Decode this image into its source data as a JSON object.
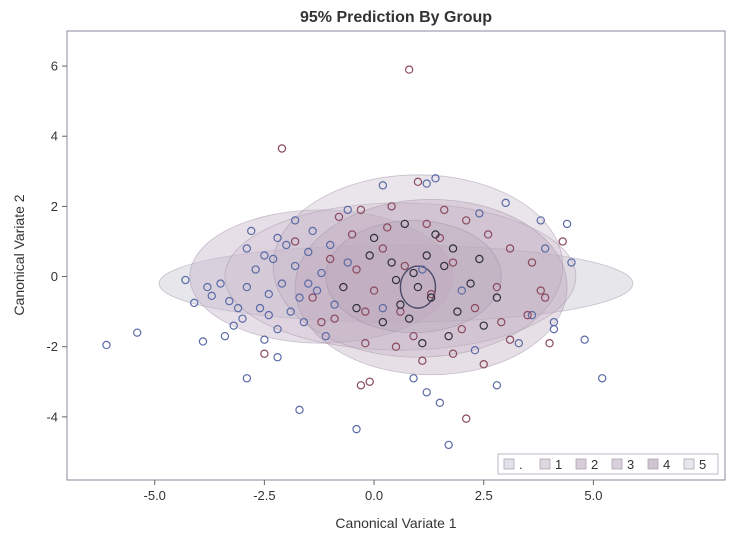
{
  "chart_data": {
    "type": "scatter",
    "title": "95% Prediction By Group",
    "xlabel": "Canonical Variate 1",
    "ylabel": "Canonical Variate 2",
    "xlim": [
      -7.0,
      8.0
    ],
    "ylim": [
      -5.8,
      7.0
    ],
    "x_ticks": [
      {
        "value": -5.0,
        "label": "-5.0"
      },
      {
        "value": -2.5,
        "label": "-2.5"
      },
      {
        "value": 0.0,
        "label": "0.0"
      },
      {
        "value": 2.5,
        "label": "2.5"
      },
      {
        "value": 5.0,
        "label": "5.0"
      }
    ],
    "y_ticks": [
      {
        "value": -4,
        "label": "-4"
      },
      {
        "value": -2,
        "label": "-2"
      },
      {
        "value": 0,
        "label": "0"
      },
      {
        "value": 2,
        "label": "2"
      },
      {
        "value": 4,
        "label": "4"
      },
      {
        "value": 6,
        "label": "6"
      }
    ],
    "grid": false,
    "legend": {
      "position": "bottom-right",
      "entries": [
        {
          "label": "."
        },
        {
          "label": "1"
        },
        {
          "label": "2"
        },
        {
          "label": "3"
        },
        {
          "label": "4"
        },
        {
          "label": "5"
        }
      ]
    },
    "ellipses": [
      {
        "cx": 0.5,
        "cy": -0.2,
        "rx": 5.4,
        "ry": 1.1,
        "fill": "#d8d8e0",
        "opacity": 0.65
      },
      {
        "cx": -1.2,
        "cy": 0.0,
        "rx": 3.0,
        "ry": 1.9,
        "fill": "#c7b9cc",
        "opacity": 0.45
      },
      {
        "cx": 0.6,
        "cy": 0.0,
        "rx": 4.0,
        "ry": 2.1,
        "fill": "#cdbecd",
        "opacity": 0.35
      },
      {
        "cx": 1.0,
        "cy": 0.3,
        "rx": 3.3,
        "ry": 2.6,
        "fill": "#c4b4c6",
        "opacity": 0.35
      },
      {
        "cx": 1.3,
        "cy": -0.3,
        "rx": 3.1,
        "ry": 2.5,
        "fill": "#b9a4b8",
        "opacity": 0.35
      },
      {
        "cx": 0.9,
        "cy": 0.0,
        "rx": 2.0,
        "ry": 1.6,
        "fill": "#b6a2b6",
        "opacity": 0.3
      },
      {
        "cx": 1.0,
        "cy": -0.3,
        "rx": 0.4,
        "ry": 0.6,
        "fill": "none",
        "opacity": 1.0
      }
    ],
    "series": [
      {
        "color": "#5b6aa6",
        "points": [
          [
            -6.1,
            -1.95
          ],
          [
            -5.4,
            -1.6
          ],
          [
            -4.3,
            -0.1
          ],
          [
            -4.1,
            -0.75
          ],
          [
            -3.9,
            -1.85
          ],
          [
            -3.8,
            -0.3
          ],
          [
            -3.7,
            -0.55
          ],
          [
            -3.5,
            -0.2
          ],
          [
            -3.3,
            -0.7
          ],
          [
            -3.2,
            -1.4
          ],
          [
            -3.1,
            -0.9
          ],
          [
            -3.0,
            -1.2
          ],
          [
            -2.9,
            0.8
          ],
          [
            -2.9,
            -0.3
          ],
          [
            -2.8,
            1.3
          ],
          [
            -2.7,
            0.2
          ],
          [
            -2.6,
            -0.9
          ],
          [
            -2.5,
            -1.8
          ],
          [
            -2.4,
            -0.5
          ],
          [
            -2.3,
            0.5
          ],
          [
            -2.2,
            1.1
          ],
          [
            -2.2,
            -1.5
          ],
          [
            -2.1,
            -0.2
          ],
          [
            -2.0,
            0.9
          ],
          [
            -1.9,
            -1.0
          ],
          [
            -1.8,
            1.6
          ],
          [
            -1.8,
            0.3
          ],
          [
            -1.7,
            -0.6
          ],
          [
            -1.6,
            -1.3
          ],
          [
            -1.5,
            0.7
          ],
          [
            -1.4,
            1.3
          ],
          [
            -1.3,
            -0.4
          ],
          [
            -1.2,
            0.1
          ],
          [
            -1.1,
            -1.7
          ],
          [
            -1.0,
            0.9
          ],
          [
            -0.9,
            -0.8
          ],
          [
            -2.9,
            -2.9
          ],
          [
            -2.2,
            -2.3
          ],
          [
            -1.7,
            -3.8
          ],
          [
            -0.4,
            -4.35
          ],
          [
            0.9,
            -2.9
          ],
          [
            1.2,
            -3.3
          ],
          [
            1.7,
            -4.8
          ],
          [
            1.5,
            -3.6
          ],
          [
            2.3,
            -2.1
          ],
          [
            2.8,
            -3.1
          ],
          [
            3.3,
            -1.9
          ],
          [
            3.6,
            -1.1
          ],
          [
            4.1,
            -1.3
          ],
          [
            4.1,
            -1.5
          ],
          [
            4.4,
            1.5
          ],
          [
            3.8,
            1.6
          ],
          [
            3.9,
            0.8
          ],
          [
            4.5,
            0.4
          ],
          [
            4.8,
            -1.8
          ],
          [
            5.2,
            -2.9
          ],
          [
            3.0,
            2.1
          ],
          [
            2.4,
            1.8
          ],
          [
            1.4,
            2.8
          ],
          [
            1.2,
            2.65
          ],
          [
            0.2,
            2.6
          ],
          [
            -0.6,
            1.9
          ],
          [
            -2.4,
            -1.1
          ],
          [
            -3.4,
            -1.7
          ],
          [
            -2.5,
            0.6
          ],
          [
            -1.5,
            -0.2
          ],
          [
            -0.6,
            0.4
          ],
          [
            0.2,
            -0.9
          ],
          [
            1.1,
            0.2
          ],
          [
            2.0,
            -0.4
          ]
        ]
      },
      {
        "color": "#8a4a5c",
        "points": [
          [
            0.8,
            5.9
          ],
          [
            -2.1,
            3.65
          ],
          [
            -0.3,
            -3.1
          ],
          [
            -0.1,
            -3.0
          ],
          [
            2.1,
            -4.05
          ],
          [
            -2.5,
            -2.2
          ],
          [
            -0.8,
            1.7
          ],
          [
            -0.3,
            1.9
          ],
          [
            0.4,
            2.0
          ],
          [
            1.0,
            2.7
          ],
          [
            1.6,
            1.9
          ],
          [
            2.1,
            1.6
          ],
          [
            2.6,
            1.2
          ],
          [
            3.1,
            0.8
          ],
          [
            3.6,
            0.4
          ],
          [
            3.8,
            -0.4
          ],
          [
            3.5,
            -1.1
          ],
          [
            3.1,
            -1.8
          ],
          [
            2.5,
            -2.5
          ],
          [
            1.8,
            -2.2
          ],
          [
            1.1,
            -2.4
          ],
          [
            0.5,
            -2.0
          ],
          [
            -0.2,
            -1.9
          ],
          [
            -0.9,
            -1.2
          ],
          [
            -1.4,
            -0.6
          ],
          [
            -1.0,
            0.5
          ],
          [
            -0.5,
            1.2
          ],
          [
            0.2,
            0.8
          ],
          [
            0.7,
            0.3
          ],
          [
            1.3,
            -0.5
          ],
          [
            1.8,
            0.4
          ],
          [
            2.3,
            -0.9
          ],
          [
            2.8,
            -0.3
          ],
          [
            0.0,
            -0.4
          ],
          [
            -0.4,
            0.2
          ],
          [
            0.6,
            -1.0
          ],
          [
            1.5,
            1.1
          ],
          [
            2.0,
            -1.5
          ],
          [
            -1.8,
            1.0
          ],
          [
            -1.2,
            -1.3
          ],
          [
            4.3,
            1.0
          ],
          [
            3.9,
            -0.6
          ],
          [
            4.0,
            -1.9
          ],
          [
            2.9,
            -1.3
          ],
          [
            1.2,
            1.5
          ],
          [
            0.3,
            1.4
          ],
          [
            -0.2,
            -1.0
          ],
          [
            0.9,
            -1.7
          ]
        ]
      },
      {
        "color": "#2f2f3a",
        "points": [
          [
            1.0,
            -0.3
          ],
          [
            0.9,
            0.1
          ],
          [
            1.3,
            -0.6
          ],
          [
            0.6,
            -0.8
          ],
          [
            1.6,
            0.3
          ],
          [
            0.4,
            0.4
          ],
          [
            1.9,
            -1.0
          ],
          [
            0.2,
            -1.3
          ],
          [
            1.4,
            1.2
          ],
          [
            0.7,
            1.5
          ],
          [
            2.2,
            -0.2
          ],
          [
            -0.1,
            0.6
          ],
          [
            0.5,
            -0.1
          ],
          [
            1.8,
            0.8
          ],
          [
            2.5,
            -1.4
          ],
          [
            -0.4,
            -0.9
          ],
          [
            1.1,
            -1.9
          ],
          [
            2.4,
            0.5
          ],
          [
            0.0,
            1.1
          ],
          [
            1.7,
            -1.7
          ],
          [
            2.8,
            -0.6
          ],
          [
            -0.7,
            -0.3
          ],
          [
            1.2,
            0.6
          ],
          [
            0.8,
            -1.2
          ]
        ]
      }
    ]
  }
}
